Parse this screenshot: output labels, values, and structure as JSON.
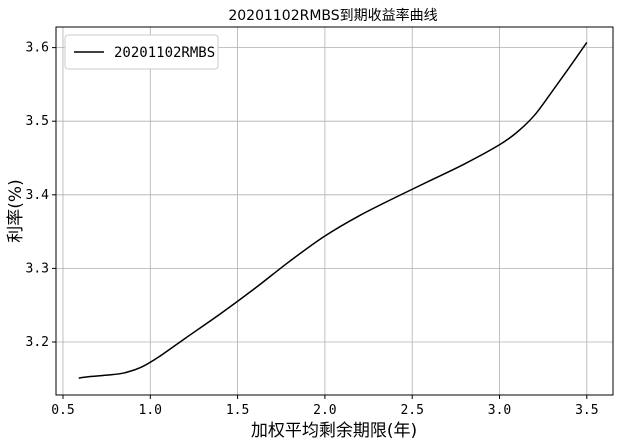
{
  "chart_data": {
    "type": "line",
    "title": "20201102RMBS到期收益率曲线",
    "xlabel": "加权平均剩余期限(年)",
    "ylabel": "利率(%)",
    "xlim": [
      0.46,
      3.65
    ],
    "ylim": [
      3.128,
      3.628
    ],
    "x_ticks": [
      0.5,
      1.0,
      1.5,
      2.0,
      2.5,
      3.0,
      3.5
    ],
    "y_ticks": [
      3.2,
      3.3,
      3.4,
      3.5,
      3.6
    ],
    "x_tick_labels": [
      "0.5",
      "1.0",
      "1.5",
      "2.0",
      "2.5",
      "3.0",
      "3.5"
    ],
    "y_tick_labels": [
      "3.2",
      "3.3",
      "3.4",
      "3.5",
      "3.6"
    ],
    "grid": true,
    "legend_position": "top-left",
    "series": [
      {
        "name": "20201102RMBS",
        "color": "#000000",
        "x": [
          0.59,
          0.65,
          0.75,
          0.85,
          0.95,
          1.05,
          1.2,
          1.4,
          1.6,
          1.8,
          2.0,
          2.2,
          2.4,
          2.6,
          2.8,
          3.0,
          3.1,
          3.2,
          3.3,
          3.4,
          3.5
        ],
        "y": [
          3.151,
          3.153,
          3.155,
          3.158,
          3.166,
          3.18,
          3.205,
          3.238,
          3.273,
          3.31,
          3.344,
          3.372,
          3.396,
          3.419,
          3.442,
          3.468,
          3.485,
          3.508,
          3.54,
          3.573,
          3.607
        ]
      }
    ]
  }
}
